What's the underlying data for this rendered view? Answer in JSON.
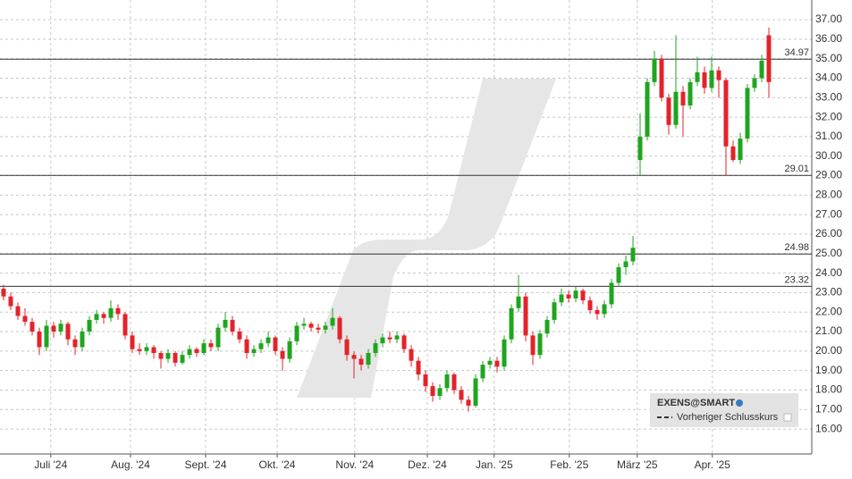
{
  "chart_data": {
    "type": "candlestick",
    "open": [
      23.2,
      22.8,
      22.3,
      21.8,
      21.5,
      21.0,
      20.2,
      21.3,
      21.0,
      21.4,
      20.6,
      20.2,
      21.0,
      21.6,
      21.9,
      21.7,
      22.2,
      21.9,
      20.8,
      20.1,
      20.0,
      20.2,
      19.9,
      19.6,
      19.9,
      19.4,
      19.8,
      20.1,
      19.9,
      20.4,
      20.2,
      21.2,
      21.6,
      21.0,
      20.6,
      19.9,
      20.1,
      20.4,
      20.7,
      20.0,
      19.6,
      20.5,
      21.3,
      21.4,
      21.2,
      21.1,
      21.3,
      21.7,
      20.6,
      19.8,
      19.6,
      19.3,
      19.9,
      20.4,
      20.7,
      20.6,
      20.8,
      20.1,
      19.5,
      18.8,
      18.2,
      17.7,
      18.1,
      18.8,
      18.0,
      17.5,
      17.2,
      18.6,
      19.3,
      19.5,
      19.2,
      20.6,
      22.2,
      22.8,
      20.8,
      19.8,
      20.9,
      21.6,
      22.5,
      22.9,
      22.7,
      23.1,
      22.6,
      22.1,
      21.9,
      22.4,
      23.5,
      24.3,
      24.6,
      29.8,
      31.0,
      33.8,
      35.0,
      33.0,
      31.6,
      33.3,
      32.6,
      33.8,
      34.3,
      33.5,
      34.4,
      33.9,
      30.5,
      29.8,
      30.9,
      33.5,
      34.0,
      36.2
    ],
    "high": [
      23.4,
      23.0,
      22.5,
      22.2,
      21.7,
      21.2,
      21.6,
      21.5,
      21.6,
      21.5,
      20.8,
      21.2,
      21.8,
      22.1,
      22.0,
      22.6,
      22.4,
      22.0,
      21.0,
      20.4,
      20.4,
      20.3,
      20.0,
      20.1,
      20.0,
      20.0,
      20.3,
      20.2,
      20.6,
      20.6,
      21.4,
      22.0,
      21.8,
      21.2,
      20.8,
      20.3,
      20.6,
      21.0,
      20.8,
      20.2,
      20.7,
      21.5,
      21.7,
      21.5,
      21.4,
      21.5,
      22.2,
      21.8,
      20.8,
      20.0,
      19.8,
      20.1,
      20.6,
      20.9,
      21.0,
      21.0,
      20.9,
      20.3,
      19.7,
      19.0,
      18.4,
      18.3,
      19.0,
      18.9,
      18.2,
      17.7,
      18.8,
      19.5,
      19.7,
      19.7,
      20.8,
      22.4,
      23.9,
      23.0,
      21.0,
      21.1,
      21.8,
      22.7,
      23.2,
      23.1,
      23.3,
      23.2,
      22.8,
      22.3,
      22.6,
      23.7,
      24.5,
      24.9,
      25.9,
      32.2,
      34.0,
      35.4,
      35.2,
      33.2,
      36.2,
      33.6,
      34.0,
      35.1,
      34.6,
      35.1,
      34.6,
      34.0,
      30.8,
      31.2,
      33.7,
      34.2,
      35.2,
      36.6
    ],
    "low": [
      22.6,
      22.1,
      21.6,
      21.3,
      20.8,
      19.8,
      20.0,
      20.7,
      20.8,
      20.3,
      19.8,
      20.0,
      20.8,
      21.4,
      21.4,
      21.5,
      21.6,
      20.6,
      19.9,
      19.8,
      19.8,
      19.6,
      19.1,
      19.4,
      19.2,
      19.3,
      19.6,
      19.7,
      19.8,
      20.0,
      20.0,
      21.0,
      20.8,
      20.4,
      19.6,
      19.7,
      19.9,
      20.2,
      19.8,
      19.0,
      19.4,
      20.3,
      21.1,
      21.0,
      20.9,
      20.9,
      21.1,
      20.4,
      19.5,
      18.6,
      19.0,
      19.1,
      19.7,
      20.2,
      20.4,
      20.4,
      19.9,
      19.2,
      18.5,
      17.9,
      17.4,
      17.5,
      17.9,
      17.8,
      17.3,
      16.9,
      17.1,
      18.4,
      19.1,
      18.9,
      19.0,
      20.4,
      22.0,
      20.5,
      19.3,
      19.6,
      20.7,
      21.4,
      22.3,
      22.5,
      22.5,
      22.4,
      21.9,
      21.6,
      21.7,
      22.2,
      23.3,
      23.9,
      24.4,
      29.0,
      30.8,
      33.6,
      32.8,
      31.1,
      31.4,
      31.0,
      32.4,
      33.6,
      33.2,
      33.3,
      33.0,
      29.0,
      29.7,
      29.6,
      30.7,
      33.3,
      33.8,
      33.0
    ],
    "close": [
      22.8,
      22.3,
      21.8,
      21.5,
      21.0,
      20.2,
      21.3,
      21.0,
      21.4,
      20.6,
      20.2,
      21.0,
      21.6,
      21.9,
      21.7,
      22.2,
      21.9,
      20.8,
      20.1,
      20.0,
      20.2,
      19.9,
      19.6,
      19.9,
      19.4,
      19.8,
      20.1,
      19.9,
      20.4,
      20.2,
      21.2,
      21.6,
      21.0,
      20.6,
      19.9,
      20.1,
      20.4,
      20.7,
      20.0,
      19.6,
      20.5,
      21.3,
      21.4,
      21.2,
      21.1,
      21.3,
      21.7,
      20.6,
      19.8,
      19.6,
      19.3,
      19.9,
      20.4,
      20.7,
      20.6,
      20.8,
      20.1,
      19.5,
      18.8,
      18.2,
      17.7,
      18.1,
      18.8,
      18.0,
      17.5,
      17.2,
      18.6,
      19.3,
      19.5,
      19.2,
      20.6,
      22.2,
      22.8,
      20.8,
      19.8,
      20.9,
      21.6,
      22.5,
      22.9,
      22.7,
      23.1,
      22.6,
      22.1,
      21.9,
      22.4,
      23.5,
      24.3,
      24.6,
      25.3,
      31.0,
      33.8,
      35.0,
      33.0,
      31.6,
      33.3,
      32.6,
      33.8,
      34.3,
      33.5,
      34.4,
      33.9,
      30.5,
      29.8,
      30.9,
      33.5,
      34.0,
      34.9,
      33.8
    ],
    "up_color": "#1fa51f",
    "down_color": "#e3232a",
    "levels": [
      34.97,
      29.01,
      24.98,
      23.32
    ],
    "xlim": [
      -0.5,
      113
    ],
    "xticks": [
      {
        "value": 6.6,
        "label": "Juli '24"
      },
      {
        "value": 17.75,
        "label": "Aug. '24"
      },
      {
        "value": 28.25,
        "label": "Sept. '24"
      },
      {
        "value": 38.25,
        "label": "Okt. '24"
      },
      {
        "value": 49.1,
        "label": "Nov. '24"
      },
      {
        "value": 59.25,
        "label": "Dez. '24"
      },
      {
        "value": 68.6,
        "label": "Jan. '25"
      },
      {
        "value": 79.1,
        "label": "Feb. '25"
      },
      {
        "value": 88.6,
        "label": "März '25"
      },
      {
        "value": 99.1,
        "label": "Apr. '25"
      }
    ],
    "ylim": [
      14.72,
      38.01
    ],
    "yticks": [
      {
        "value": 16,
        "label": "16.00"
      },
      {
        "value": 17,
        "label": "17.00"
      },
      {
        "value": 18,
        "label": "18.00"
      },
      {
        "value": 19,
        "label": "19.00"
      },
      {
        "value": 20,
        "label": "20.00"
      },
      {
        "value": 21,
        "label": "21.00"
      },
      {
        "value": 22,
        "label": "22.00"
      },
      {
        "value": 23,
        "label": "23.00"
      },
      {
        "value": 24,
        "label": "24.00"
      },
      {
        "value": 25,
        "label": "25.00"
      },
      {
        "value": 26,
        "label": "26.00"
      },
      {
        "value": 27,
        "label": "27.00"
      },
      {
        "value": 28,
        "label": "28.00"
      },
      {
        "value": 29,
        "label": "29.00"
      },
      {
        "value": 30,
        "label": "30.00"
      },
      {
        "value": 31,
        "label": "31.00"
      },
      {
        "value": 32,
        "label": "32.00"
      },
      {
        "value": 33,
        "label": "33.00"
      },
      {
        "value": 34,
        "label": "34.00"
      },
      {
        "value": 35,
        "label": "35.00"
      },
      {
        "value": 36,
        "label": "36.00"
      },
      {
        "value": 37,
        "label": "37.00"
      }
    ],
    "grid": true,
    "legend": {
      "instrument": "EXENS@SMART",
      "line": "Vorheriger Schlusskurs"
    }
  }
}
